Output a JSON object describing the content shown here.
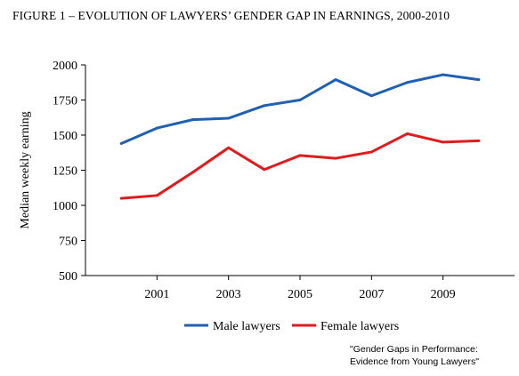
{
  "chart_data": {
    "type": "line",
    "title": "FIGURE 1 – EVOLUTION OF LAWYERS’ GENDER GAP IN EARNINGS, 2000-2010",
    "ylabel": "Median weekly earning",
    "xlabel": "",
    "x": [
      2000,
      2001,
      2002,
      2003,
      2004,
      2005,
      2006,
      2007,
      2008,
      2009,
      2010
    ],
    "xticks": [
      2001,
      2003,
      2005,
      2007,
      2009
    ],
    "xlim": [
      1999,
      2011
    ],
    "ylim": [
      500,
      2000
    ],
    "yticks": [
      500,
      750,
      1000,
      1250,
      1500,
      1750,
      2000
    ],
    "grid": false,
    "legend_position": "bottom",
    "series": [
      {
        "name": "Male lawyers",
        "color": "#1f5fb4",
        "values": [
          1440,
          1550,
          1610,
          1620,
          1710,
          1750,
          1895,
          1780,
          1875,
          1930,
          1895
        ]
      },
      {
        "name": "Female lawyers",
        "color": "#e31a1c",
        "values": [
          1050,
          1070,
          1235,
          1410,
          1255,
          1355,
          1335,
          1380,
          1510,
          1450,
          1460
        ]
      }
    ]
  },
  "source": {
    "line1": "\"Gender Gaps in Performance:",
    "line2": "Evidence from Young Lawyers\""
  }
}
